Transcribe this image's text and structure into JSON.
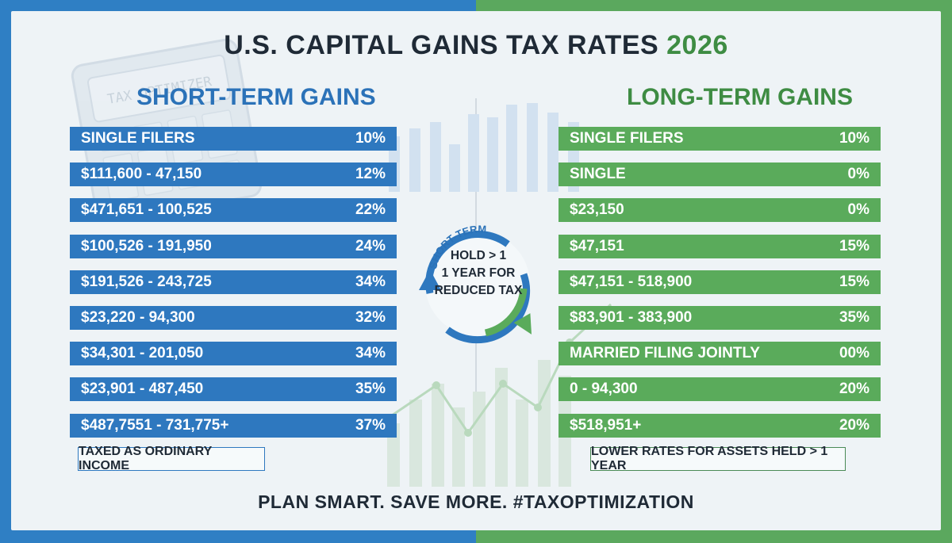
{
  "title": "U.S. CAPITAL GAINS TAX RATES",
  "year": "2026",
  "watermark_label": "TAX OPTIMIZER",
  "short_term": {
    "heading": "SHORT-TERM GAINS",
    "rows": [
      {
        "label": "SINGLE FILERS",
        "rate": "10%"
      },
      {
        "label": "$111,600 - 47,150",
        "rate": "12%"
      },
      {
        "label": "$471,651 - 100,525",
        "rate": "22%"
      },
      {
        "label": "$100,526 - 191,950",
        "rate": "24%"
      },
      {
        "label": "$191,526 - 243,725",
        "rate": "34%"
      },
      {
        "label": "$23,220 - 94,300",
        "rate": "32%"
      },
      {
        "label": "$34,301 - 201,050",
        "rate": "34%"
      },
      {
        "label": "$23,901 - 487,450",
        "rate": "35%"
      },
      {
        "label": "$487,7551 - 731,775+",
        "rate": "37%"
      }
    ],
    "note": "TAXED AS ORDINARY INCOME"
  },
  "long_term": {
    "heading": "LONG-TERM GAINS",
    "rows": [
      {
        "label": "SINGLE FILERS",
        "rate": "10%"
      },
      {
        "label": "SINGLE",
        "rate": "0%"
      },
      {
        "label": "$23,150",
        "rate": "0%"
      },
      {
        "label": "$47,151",
        "rate": "15%"
      },
      {
        "label": "$47,151 - 518,900",
        "rate": "15%"
      },
      {
        "label": "$83,901 - 383,900",
        "rate": "35%"
      },
      {
        "label": "MARRIED FILING JOINTLY",
        "rate": "00%"
      },
      {
        "label": "0 - 94,300",
        "rate": "20%"
      },
      {
        "label": "$518,951+",
        "rate": "20%"
      }
    ],
    "note": "LOWER RATES FOR ASSETS HELD > 1 YEAR"
  },
  "cycle": {
    "arc_label": "SHORT-TERM",
    "line1": "HOLD > 1",
    "line2": "1 YEAR FOR",
    "line3": "REDUCED TAX"
  },
  "footer": "PLAN SMART. SAVE MORE. #TAXOPTIMIZATION",
  "colors": {
    "blue": "#2e78bf",
    "green": "#5aab5b",
    "dark": "#1f2a36",
    "background": "#eef3f6"
  }
}
